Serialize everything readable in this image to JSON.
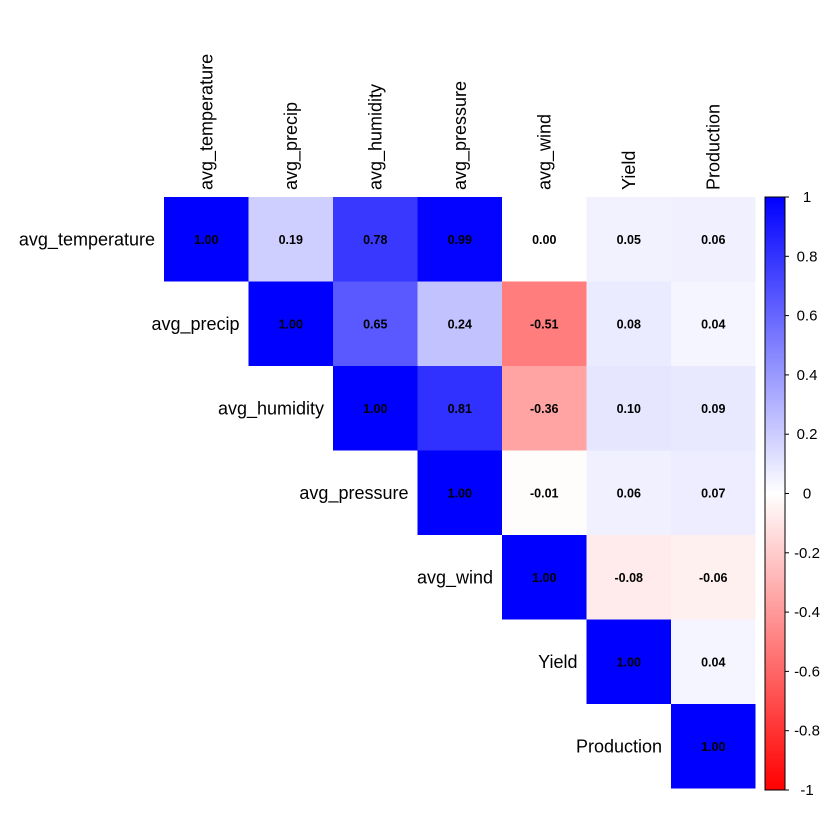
{
  "chart_data": {
    "type": "heatmap",
    "variables": [
      "avg_temperature",
      "avg_precip",
      "avg_humidity",
      "avg_pressure",
      "avg_wind",
      "Yield",
      "Production"
    ],
    "matrix": [
      [
        1.0,
        0.19,
        0.78,
        0.99,
        0.0,
        0.05,
        0.06
      ],
      [
        0.19,
        1.0,
        0.65,
        0.24,
        -0.51,
        0.08,
        0.04
      ],
      [
        0.78,
        0.65,
        1.0,
        0.81,
        -0.36,
        0.1,
        0.09
      ],
      [
        0.99,
        0.24,
        0.81,
        1.0,
        -0.01,
        0.06,
        0.07
      ],
      [
        0.0,
        -0.51,
        -0.36,
        -0.01,
        1.0,
        -0.08,
        -0.06
      ],
      [
        0.05,
        0.08,
        0.1,
        0.06,
        -0.08,
        1.0,
        0.04
      ],
      [
        0.06,
        0.04,
        0.09,
        0.07,
        -0.06,
        0.04,
        1.0
      ]
    ],
    "layout": "upper-triangle",
    "range": [
      -1,
      1
    ],
    "colorscale": {
      "low": "#ff0000",
      "mid": "#ffffff",
      "high": "#0000ff"
    },
    "colorbar_ticks": [
      "1",
      "0.8",
      "0.6",
      "0.4",
      "0.2",
      "0",
      "-0.2",
      "-0.4",
      "-0.6",
      "-0.8",
      "-1"
    ],
    "colorbar_tick_values": [
      1,
      0.8,
      0.6,
      0.4,
      0.2,
      0,
      -0.2,
      -0.4,
      -0.6,
      -0.8,
      -1
    ],
    "value_format": "2 decimals"
  }
}
